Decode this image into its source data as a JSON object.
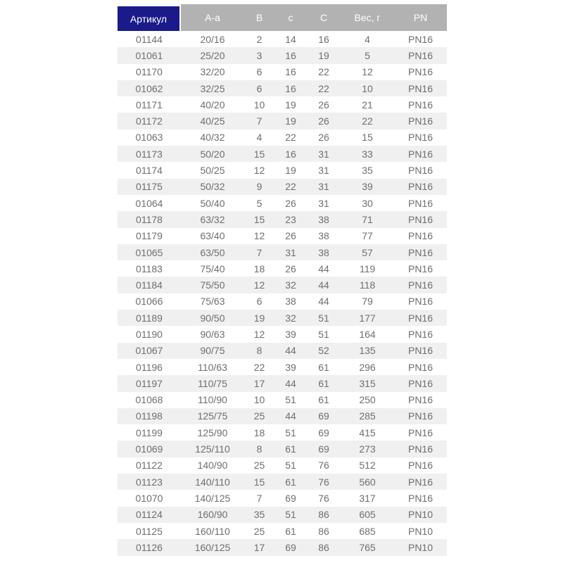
{
  "table": {
    "headers": [
      "Артикул",
      "A-a",
      "B",
      "c",
      "C",
      "Вес, г",
      "PN"
    ],
    "rows": [
      [
        "01144",
        "20/16",
        "2",
        "14",
        "16",
        "4",
        "PN16"
      ],
      [
        "01061",
        "25/20",
        "3",
        "16",
        "19",
        "5",
        "PN16"
      ],
      [
        "01170",
        "32/20",
        "6",
        "16",
        "22",
        "12",
        "PN16"
      ],
      [
        "01062",
        "32/25",
        "6",
        "16",
        "22",
        "10",
        "PN16"
      ],
      [
        "01171",
        "40/20",
        "10",
        "19",
        "26",
        "21",
        "PN16"
      ],
      [
        "01172",
        "40/25",
        "7",
        "19",
        "26",
        "22",
        "PN16"
      ],
      [
        "01063",
        "40/32",
        "4",
        "22",
        "26",
        "15",
        "PN16"
      ],
      [
        "01173",
        "50/20",
        "15",
        "16",
        "31",
        "33",
        "PN16"
      ],
      [
        "01174",
        "50/25",
        "12",
        "19",
        "31",
        "35",
        "PN16"
      ],
      [
        "01175",
        "50/32",
        "9",
        "22",
        "31",
        "39",
        "PN16"
      ],
      [
        "01064",
        "50/40",
        "5",
        "26",
        "31",
        "30",
        "PN16"
      ],
      [
        "01178",
        "63/32",
        "15",
        "23",
        "38",
        "71",
        "PN16"
      ],
      [
        "01179",
        "63/40",
        "12",
        "26",
        "38",
        "77",
        "PN16"
      ],
      [
        "01065",
        "63/50",
        "7",
        "31",
        "38",
        "57",
        "PN16"
      ],
      [
        "01183",
        "75/40",
        "18",
        "26",
        "44",
        "119",
        "PN16"
      ],
      [
        "01184",
        "75/50",
        "12",
        "32",
        "44",
        "118",
        "PN16"
      ],
      [
        "01066",
        "75/63",
        "6",
        "38",
        "44",
        "79",
        "PN16"
      ],
      [
        "01189",
        "90/50",
        "19",
        "32",
        "51",
        "177",
        "PN16"
      ],
      [
        "01190",
        "90/63",
        "12",
        "39",
        "51",
        "164",
        "PN16"
      ],
      [
        "01067",
        "90/75",
        "8",
        "44",
        "52",
        "135",
        "PN16"
      ],
      [
        "01196",
        "110/63",
        "22",
        "39",
        "61",
        "296",
        "PN16"
      ],
      [
        "01197",
        "110/75",
        "17",
        "44",
        "61",
        "315",
        "PN16"
      ],
      [
        "01068",
        "110/90",
        "10",
        "51",
        "61",
        "250",
        "PN16"
      ],
      [
        "01198",
        "125/75",
        "25",
        "44",
        "69",
        "285",
        "PN16"
      ],
      [
        "01199",
        "125/90",
        "18",
        "51",
        "69",
        "415",
        "PN16"
      ],
      [
        "01069",
        "125/110",
        "8",
        "61",
        "69",
        "273",
        "PN16"
      ],
      [
        "01122",
        "140/90",
        "25",
        "51",
        "76",
        "512",
        "PN16"
      ],
      [
        "01123",
        "140/110",
        "15",
        "61",
        "76",
        "560",
        "PN16"
      ],
      [
        "01070",
        "140/125",
        "7",
        "69",
        "76",
        "317",
        "PN16"
      ],
      [
        "01124",
        "160/90",
        "35",
        "51",
        "86",
        "605",
        "PN10"
      ],
      [
        "01125",
        "160/110",
        "25",
        "61",
        "86",
        "685",
        "PN10"
      ],
      [
        "01126",
        "160/125",
        "17",
        "69",
        "86",
        "765",
        "PN10"
      ]
    ]
  },
  "colors": {
    "header_navy": "#1a1a8a",
    "header_gray": "#b2b2b2",
    "header_text": "#ffffff",
    "row_stripe": "#f0f0f0",
    "row_text": "#6e6e6e"
  }
}
